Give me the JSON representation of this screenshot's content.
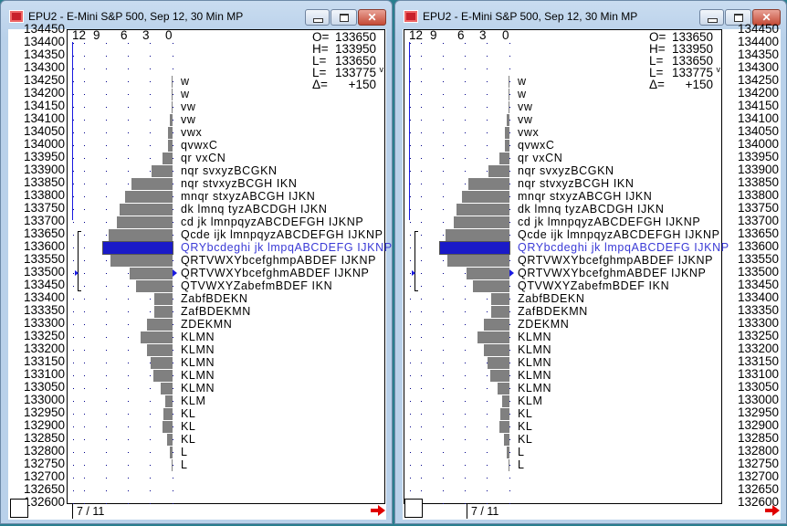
{
  "windows": [
    {
      "title": "EPU2 - E-Mini S&P 500, Sep 12, 30 Min MP",
      "axis_side": "left"
    },
    {
      "title": "EPU2 - E-Mini S&P 500, Sep 12, 30 Min MP",
      "axis_side": "right"
    }
  ],
  "title_buttons": {
    "close_glyph": "✕"
  },
  "colors": {
    "bar": "#808080",
    "poc_bar": "#1a1ac8",
    "poc_text": "#3b3bd6",
    "dots": "#00008b",
    "arrow": "#e00000"
  },
  "scale_labels": [
    "12",
    "9",
    "6",
    "3",
    "0"
  ],
  "stats": [
    {
      "label": "O=",
      "value": "133650",
      "mark": ""
    },
    {
      "label": "H=",
      "value": "133950",
      "mark": ""
    },
    {
      "label": "L=",
      "value": "133650",
      "mark": ""
    },
    {
      "label": "L=",
      "value": "133775",
      "mark": "v"
    },
    {
      "label": "Δ=",
      "value": "+150",
      "mark": ""
    }
  ],
  "price_axis": [
    "134450",
    "134400",
    "134350",
    "134300",
    "134250",
    "134200",
    "134150",
    "134100",
    "134050",
    "134000",
    "133950",
    "133900",
    "133850",
    "133800",
    "133750",
    "133700",
    "133650",
    "133600",
    "133550",
    "133500",
    "133450",
    "133400",
    "133350",
    "133300",
    "133250",
    "133200",
    "133150",
    "133100",
    "133050",
    "133000",
    "132950",
    "132900",
    "132850",
    "132800",
    "132750",
    "132700",
    "132650",
    "132600"
  ],
  "profile": {
    "scale_max": 12,
    "poc_price": "133600",
    "marker_price": "133500",
    "value_area": [
      "133650",
      "133450"
    ],
    "rows": [
      {
        "price": "134250",
        "tpo": "w",
        "size": 0.15
      },
      {
        "price": "134200",
        "tpo": "w",
        "size": 0.15
      },
      {
        "price": "134150",
        "tpo": "vw",
        "size": 0.15
      },
      {
        "price": "134100",
        "tpo": "vw",
        "size": 0.4
      },
      {
        "price": "134050",
        "tpo": "vwx",
        "size": 0.6
      },
      {
        "price": "134000",
        "tpo": "qvwxC",
        "size": 0.55
      },
      {
        "price": "133950",
        "tpo": "qr vxCN",
        "size": 1.3
      },
      {
        "price": "133900",
        "tpo": "nqr svxyzBCGKN",
        "size": 2.8
      },
      {
        "price": "133850",
        "tpo": "nqr stvxyzBCGH IKN",
        "size": 5.4
      },
      {
        "price": "133800",
        "tpo": "mnqr stxyzABCGH IJKN",
        "size": 6.2
      },
      {
        "price": "133750",
        "tpo": "dk lmnq tyzABCDGH IJKN",
        "size": 7.0
      },
      {
        "price": "133700",
        "tpo": "cd jk lmnpqyzABCDEFGH IJKNP",
        "size": 7.3
      },
      {
        "price": "133650",
        "tpo": "Qcde ijk lmnpqyzABCDEFGH IJKNP",
        "size": 8.4
      },
      {
        "price": "133600",
        "tpo": "QRYbcdeghi jk lmpqABCDEFG IJKNP",
        "size": 9.1
      },
      {
        "price": "133550",
        "tpo": "QRTVWXYbcefghmpABDEF IJKNP",
        "size": 8.2
      },
      {
        "price": "133500",
        "tpo": "QRTVWXYbcefghmABDEF IJKNP",
        "size": 5.6
      },
      {
        "price": "133450",
        "tpo": "QTVWXYZabefmBDEF IKN",
        "size": 4.8
      },
      {
        "price": "133400",
        "tpo": "ZabfBDEKN",
        "size": 2.4
      },
      {
        "price": "133350",
        "tpo": "ZafBDEKMN",
        "size": 2.4
      },
      {
        "price": "133300",
        "tpo": "ZDEKMN",
        "size": 3.4
      },
      {
        "price": "133250",
        "tpo": "KLMN",
        "size": 4.2
      },
      {
        "price": "133200",
        "tpo": "KLMN",
        "size": 3.4
      },
      {
        "price": "133150",
        "tpo": "KLMN",
        "size": 2.9
      },
      {
        "price": "133100",
        "tpo": "KLMN",
        "size": 2.5
      },
      {
        "price": "133050",
        "tpo": "KLMN",
        "size": 1.6
      },
      {
        "price": "133000",
        "tpo": "KLM",
        "size": 1.0
      },
      {
        "price": "132950",
        "tpo": "KL",
        "size": 1.2
      },
      {
        "price": "132900",
        "tpo": "KL",
        "size": 1.3
      },
      {
        "price": "132850",
        "tpo": "KL",
        "size": 0.7
      },
      {
        "price": "132800",
        "tpo": "L",
        "size": 0.4
      },
      {
        "price": "132750",
        "tpo": "L",
        "size": 0.15
      }
    ]
  },
  "footer": {
    "page": "7 / 11"
  }
}
